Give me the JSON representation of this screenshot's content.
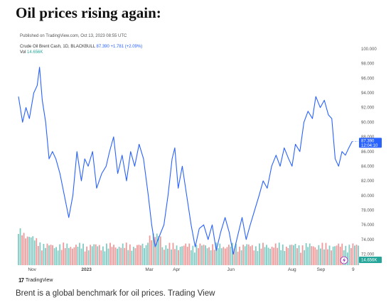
{
  "article": {
    "headline": "Oil prices rising again:",
    "caption_main": "Brent is a global benchmark for oil prices.",
    "caption_credit": "Trading View"
  },
  "chart_header": {
    "published": "Published on TradingView.com, Oct 13, 2023 08:55 UTC",
    "symbol": "Crude Oil Brent Cash, 1D, BLACKBULL",
    "price": "87.390",
    "change": "+1.781 (+2.09%)",
    "vol_label": "Vol",
    "vol_value": "14.656K",
    "last_price_tag": "87.390",
    "countdown": "12:04:10",
    "vol_tag": "14.656K",
    "wordmark": "TradingView"
  },
  "colors": {
    "line": "#2962ff",
    "vol_up": "#80cbc4",
    "vol_down": "#ef9a9a",
    "tag": "#2962ff",
    "vol_tag": "#26a69a"
  },
  "chart_data": {
    "type": "line",
    "y_ticks": [
      72.0,
      74.0,
      76.0,
      78.0,
      80.0,
      82.0,
      84.0,
      86.0,
      88.0,
      90.0,
      92.0,
      94.0,
      96.0,
      98.0,
      100.0
    ],
    "ylim": [
      70.5,
      100.0
    ],
    "x_ticks": [
      {
        "label": "Nov",
        "t": 0.04
      },
      {
        "label": "2023",
        "t": 0.2
      },
      {
        "label": "Mar",
        "t": 0.385
      },
      {
        "label": "Apr",
        "t": 0.465
      },
      {
        "label": "Jun",
        "t": 0.625
      },
      {
        "label": "Aug",
        "t": 0.805
      },
      {
        "label": "Sep",
        "t": 0.89
      },
      {
        "label": "9",
        "t": 0.985
      }
    ],
    "price_series": [
      [
        0.0,
        93.5
      ],
      [
        0.012,
        90.0
      ],
      [
        0.022,
        92.0
      ],
      [
        0.032,
        90.5
      ],
      [
        0.045,
        94.0
      ],
      [
        0.055,
        95.0
      ],
      [
        0.062,
        97.5
      ],
      [
        0.07,
        93.0
      ],
      [
        0.08,
        90.0
      ],
      [
        0.09,
        85.0
      ],
      [
        0.1,
        86.0
      ],
      [
        0.11,
        85.0
      ],
      [
        0.122,
        83.0
      ],
      [
        0.135,
        80.0
      ],
      [
        0.148,
        77.0
      ],
      [
        0.16,
        80.0
      ],
      [
        0.172,
        86.0
      ],
      [
        0.185,
        82.0
      ],
      [
        0.195,
        85.0
      ],
      [
        0.205,
        84.0
      ],
      [
        0.218,
        86.0
      ],
      [
        0.23,
        81.0
      ],
      [
        0.245,
        83.0
      ],
      [
        0.258,
        84.0
      ],
      [
        0.268,
        86.0
      ],
      [
        0.28,
        88.0
      ],
      [
        0.292,
        83.0
      ],
      [
        0.305,
        85.5
      ],
      [
        0.318,
        82.0
      ],
      [
        0.33,
        86.0
      ],
      [
        0.342,
        84.0
      ],
      [
        0.355,
        87.0
      ],
      [
        0.368,
        85.0
      ],
      [
        0.382,
        80.0
      ],
      [
        0.392,
        76.0
      ],
      [
        0.402,
        73.0
      ],
      [
        0.415,
        74.5
      ],
      [
        0.428,
        76.0
      ],
      [
        0.44,
        80.0
      ],
      [
        0.452,
        85.0
      ],
      [
        0.46,
        86.5
      ],
      [
        0.47,
        81.0
      ],
      [
        0.482,
        84.0
      ],
      [
        0.495,
        80.0
      ],
      [
        0.508,
        76.0
      ],
      [
        0.52,
        73.0
      ],
      [
        0.532,
        75.5
      ],
      [
        0.545,
        76.0
      ],
      [
        0.558,
        74.0
      ],
      [
        0.57,
        76.0
      ],
      [
        0.582,
        72.5
      ],
      [
        0.595,
        75.0
      ],
      [
        0.608,
        77.0
      ],
      [
        0.62,
        75.0
      ],
      [
        0.632,
        72.0
      ],
      [
        0.645,
        74.5
      ],
      [
        0.658,
        77.0
      ],
      [
        0.67,
        74.0
      ],
      [
        0.682,
        76.0
      ],
      [
        0.695,
        78.0
      ],
      [
        0.708,
        80.0
      ],
      [
        0.72,
        82.0
      ],
      [
        0.732,
        81.0
      ],
      [
        0.745,
        84.0
      ],
      [
        0.758,
        85.5
      ],
      [
        0.77,
        84.0
      ],
      [
        0.782,
        86.5
      ],
      [
        0.795,
        85.0
      ],
      [
        0.805,
        84.0
      ],
      [
        0.815,
        87.0
      ],
      [
        0.828,
        86.0
      ],
      [
        0.84,
        90.0
      ],
      [
        0.852,
        91.5
      ],
      [
        0.865,
        90.5
      ],
      [
        0.875,
        93.5
      ],
      [
        0.888,
        92.0
      ],
      [
        0.9,
        93.0
      ],
      [
        0.912,
        91.0
      ],
      [
        0.922,
        90.5
      ],
      [
        0.932,
        85.0
      ],
      [
        0.942,
        84.0
      ],
      [
        0.952,
        86.0
      ],
      [
        0.962,
        85.5
      ],
      [
        0.972,
        86.5
      ],
      [
        0.982,
        87.39
      ]
    ]
  }
}
